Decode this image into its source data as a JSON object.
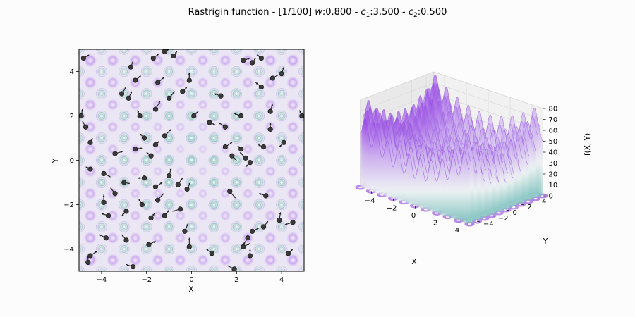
{
  "figure": {
    "title_prefix": "Rastrigin function - [1/100] ",
    "w_label": "w",
    "w_value": ":0.800",
    "c1_label": "c",
    "c1_sub": "1",
    "c1_value": ":3.500",
    "c2_label": "c",
    "c2_sub": "2",
    "c2_value": ":0.500",
    "sep": " - "
  },
  "chart_data": [
    {
      "type": "scatter",
      "title": "",
      "xlabel": "X",
      "ylabel": "Y",
      "xlim": [
        -5,
        5
      ],
      "ylim": [
        -5,
        5
      ],
      "xticks": [
        "−4",
        "−2",
        "0",
        "2",
        "4"
      ],
      "yticks": [
        "−4",
        "−2",
        "0",
        "2",
        "4"
      ],
      "background": "contour of Rastrigin function",
      "particles": [
        {
          "x": -4.8,
          "y": 4.6,
          "u": 0.25,
          "v": 0.15
        },
        {
          "x": -3.1,
          "y": 3.0,
          "u": 0.2,
          "v": 0.3
        },
        {
          "x": -2.7,
          "y": 4.2,
          "u": 0.1,
          "v": 0.25
        },
        {
          "x": -1.7,
          "y": 4.6,
          "u": 0.25,
          "v": 0.2
        },
        {
          "x": -1.2,
          "y": 4.9,
          "u": 0.2,
          "v": 0.1
        },
        {
          "x": -0.8,
          "y": 4.7,
          "u": 0.15,
          "v": 0.2
        },
        {
          "x": -0.1,
          "y": 3.6,
          "u": 0.0,
          "v": 0.35
        },
        {
          "x": -1.5,
          "y": 3.5,
          "u": 0.3,
          "v": 0.25
        },
        {
          "x": -1.0,
          "y": 2.8,
          "u": 0.25,
          "v": 0.3
        },
        {
          "x": -0.4,
          "y": 3.1,
          "u": 0.2,
          "v": 0.2
        },
        {
          "x": -2.5,
          "y": 3.6,
          "u": 0.25,
          "v": 0.2
        },
        {
          "x": -2.8,
          "y": 2.8,
          "u": 0.15,
          "v": 0.3
        },
        {
          "x": -1.6,
          "y": 2.3,
          "u": 0.2,
          "v": 0.35
        },
        {
          "x": -2.3,
          "y": 2.0,
          "u": -0.1,
          "v": 0.25
        },
        {
          "x": 0.1,
          "y": 2.0,
          "u": 0.2,
          "v": 0.2
        },
        {
          "x": 1.3,
          "y": 2.9,
          "u": -0.3,
          "v": 0.1
        },
        {
          "x": 1.5,
          "y": 1.5,
          "u": -0.3,
          "v": 0.2
        },
        {
          "x": 2.3,
          "y": 4.5,
          "u": 0.3,
          "v": 0.1
        },
        {
          "x": 2.7,
          "y": 4.4,
          "u": 0.15,
          "v": 0.2
        },
        {
          "x": 3.1,
          "y": 4.6,
          "u": -0.2,
          "v": 0.15
        },
        {
          "x": 3.6,
          "y": 3.7,
          "u": 0.25,
          "v": 0.15
        },
        {
          "x": 4.0,
          "y": 3.9,
          "u": 0.1,
          "v": 0.3
        },
        {
          "x": 3.1,
          "y": 3.3,
          "u": -0.25,
          "v": 0.2
        },
        {
          "x": 3.5,
          "y": 2.2,
          "u": 0.1,
          "v": 0.35
        },
        {
          "x": 2.2,
          "y": 2.0,
          "u": -0.3,
          "v": 0.1
        },
        {
          "x": 3.5,
          "y": 1.4,
          "u": 0.0,
          "v": 0.3
        },
        {
          "x": 4.9,
          "y": 2.0,
          "u": -0.1,
          "v": 0.25
        },
        {
          "x": 4.1,
          "y": 0.8,
          "u": -0.2,
          "v": -0.2
        },
        {
          "x": -4.9,
          "y": 2.0,
          "u": 0.05,
          "v": 0.3
        },
        {
          "x": -4.7,
          "y": 1.5,
          "u": -0.15,
          "v": 0.25
        },
        {
          "x": -4.5,
          "y": 0.8,
          "u": 0.1,
          "v": 0.2
        },
        {
          "x": -2.1,
          "y": 1.0,
          "u": -0.2,
          "v": 0.2
        },
        {
          "x": -1.6,
          "y": 0.7,
          "u": 0.15,
          "v": 0.15
        },
        {
          "x": -1.2,
          "y": 1.1,
          "u": 0.3,
          "v": 0.3
        },
        {
          "x": -1.8,
          "y": 0.2,
          "u": -0.2,
          "v": 0.15
        },
        {
          "x": -2.5,
          "y": 0.5,
          "u": 0.3,
          "v": 0.05
        },
        {
          "x": -3.4,
          "y": 0.3,
          "u": 0.35,
          "v": 0.1
        },
        {
          "x": -4.5,
          "y": -0.4,
          "u": -0.2,
          "v": 0.1
        },
        {
          "x": -3.9,
          "y": -0.6,
          "u": 0.3,
          "v": -0.15
        },
        {
          "x": -3.9,
          "y": -1.9,
          "u": 0.0,
          "v": 0.35
        },
        {
          "x": -3.4,
          "y": -1.5,
          "u": -0.2,
          "v": 0.25
        },
        {
          "x": -3.0,
          "y": -1.0,
          "u": 0.25,
          "v": -0.05
        },
        {
          "x": -2.1,
          "y": -0.8,
          "u": -0.3,
          "v": 0.0
        },
        {
          "x": -1.6,
          "y": -1.2,
          "u": 0.3,
          "v": 0.2
        },
        {
          "x": -1.0,
          "y": -0.7,
          "u": 0.1,
          "v": 0.35
        },
        {
          "x": -0.2,
          "y": -1.3,
          "u": 0.15,
          "v": 0.3
        },
        {
          "x": -0.5,
          "y": -2.2,
          "u": -0.35,
          "v": -0.1
        },
        {
          "x": -1.5,
          "y": -1.8,
          "u": 0.25,
          "v": 0.3
        },
        {
          "x": -1.2,
          "y": -2.5,
          "u": 0.2,
          "v": 0.25
        },
        {
          "x": -1.8,
          "y": -2.6,
          "u": 0.15,
          "v": 0.2
        },
        {
          "x": -2.9,
          "y": -2.3,
          "u": -0.2,
          "v": -0.2
        },
        {
          "x": -3.7,
          "y": -2.5,
          "u": -0.3,
          "v": 0.1
        },
        {
          "x": -2.2,
          "y": -2.0,
          "u": -0.15,
          "v": 0.25
        },
        {
          "x": -0.6,
          "y": -1.1,
          "u": 0.2,
          "v": 0.3
        },
        {
          "x": 0.8,
          "y": 1.7,
          "u": 0.25,
          "v": -0.1
        },
        {
          "x": 1.5,
          "y": 0.6,
          "u": 0.3,
          "v": 0.2
        },
        {
          "x": 1.8,
          "y": 0.2,
          "u": 0.2,
          "v": -0.2
        },
        {
          "x": 2.2,
          "y": 0.5,
          "u": -0.15,
          "v": 0.15
        },
        {
          "x": 2.4,
          "y": 0.1,
          "u": -0.25,
          "v": 0.25
        },
        {
          "x": 2.6,
          "y": -0.1,
          "u": -0.2,
          "v": -0.2
        },
        {
          "x": 3.2,
          "y": 0.6,
          "u": -0.25,
          "v": 0.1
        },
        {
          "x": 1.7,
          "y": -1.4,
          "u": 0.25,
          "v": -0.3
        },
        {
          "x": 3.3,
          "y": -1.6,
          "u": -0.3,
          "v": 0.1
        },
        {
          "x": 3.9,
          "y": -2.7,
          "u": 0.05,
          "v": 0.35
        },
        {
          "x": 4.5,
          "y": -2.8,
          "u": -0.35,
          "v": -0.1
        },
        {
          "x": 3.2,
          "y": -3.0,
          "u": 0.2,
          "v": 0.25
        },
        {
          "x": 2.7,
          "y": -3.2,
          "u": 0.3,
          "v": 0.15
        },
        {
          "x": 2.5,
          "y": -3.5,
          "u": -0.2,
          "v": -0.3
        },
        {
          "x": 2.3,
          "y": -3.9,
          "u": 0.3,
          "v": 0.15
        },
        {
          "x": 2.6,
          "y": -4.3,
          "u": 0.0,
          "v": 0.3
        },
        {
          "x": 1.9,
          "y": -4.9,
          "u": -0.3,
          "v": 0.15
        },
        {
          "x": 0.9,
          "y": -4.2,
          "u": -0.25,
          "v": 0.2
        },
        {
          "x": -0.1,
          "y": -3.9,
          "u": 0.0,
          "v": 0.4
        },
        {
          "x": -0.3,
          "y": -3.2,
          "u": 0.15,
          "v": 0.35
        },
        {
          "x": -1.9,
          "y": -3.8,
          "u": 0.3,
          "v": 0.15
        },
        {
          "x": -2.9,
          "y": -3.6,
          "u": -0.2,
          "v": 0.25
        },
        {
          "x": -3.8,
          "y": -3.5,
          "u": -0.3,
          "v": 0.15
        },
        {
          "x": -4.5,
          "y": -4.3,
          "u": 0.3,
          "v": 0.2
        },
        {
          "x": -4.6,
          "y": -4.6,
          "u": 0.0,
          "v": 0.3
        },
        {
          "x": -2.6,
          "y": -4.8,
          "u": -0.3,
          "v": 0.1
        },
        {
          "x": 4.3,
          "y": -4.2,
          "u": 0.2,
          "v": 0.2
        }
      ]
    },
    {
      "type": "surface",
      "title": "",
      "xlabel": "X",
      "ylabel": "Y",
      "zlabel": "f(X, Y)",
      "xticks": [
        "−4",
        "−2",
        "0",
        "2",
        "4"
      ],
      "yticks": [
        "−4",
        "−2",
        "0",
        "2",
        "4"
      ],
      "zticks": [
        "0",
        "10",
        "20",
        "30",
        "40",
        "50",
        "60",
        "70",
        "80"
      ],
      "xlim": [
        -5,
        5
      ],
      "ylim": [
        -5,
        5
      ],
      "zlim": [
        0,
        80
      ]
    }
  ],
  "colors": {
    "high": "#8a2be2",
    "mid": "#e8eef0",
    "low": "#6fb6b4",
    "particle": "#202020"
  }
}
